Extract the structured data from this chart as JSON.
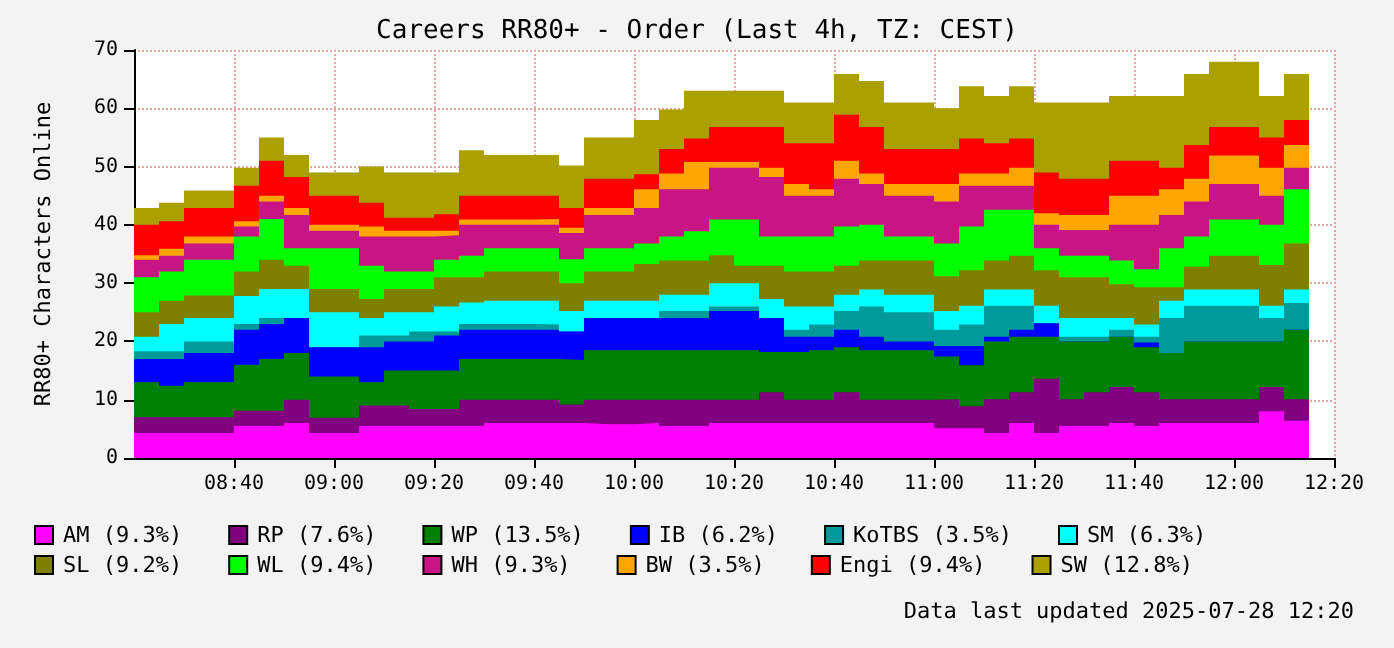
{
  "chart_data": {
    "type": "area",
    "stacked": true,
    "title": "Careers RR80+ - Order (Last 4h, TZ: CEST)",
    "ylabel": "RR80+ Characters Online",
    "annotations": [
      "Data last updated 2025-07-28 12:20"
    ],
    "x": [
      "2025-07-28T08:20",
      "2025-07-28T08:25",
      "2025-07-28T08:30",
      "2025-07-28T08:35",
      "2025-07-28T08:40",
      "2025-07-28T08:45",
      "2025-07-28T08:50",
      "2025-07-28T08:55",
      "2025-07-28T09:00",
      "2025-07-28T09:05",
      "2025-07-28T09:10",
      "2025-07-28T09:15",
      "2025-07-28T09:20",
      "2025-07-28T09:25",
      "2025-07-28T09:30",
      "2025-07-28T09:35",
      "2025-07-28T09:40",
      "2025-07-28T09:45",
      "2025-07-28T09:50",
      "2025-07-28T09:55",
      "2025-07-28T10:00",
      "2025-07-28T10:05",
      "2025-07-28T10:10",
      "2025-07-28T10:15",
      "2025-07-28T10:20",
      "2025-07-28T10:25",
      "2025-07-28T10:30",
      "2025-07-28T10:35",
      "2025-07-28T10:40",
      "2025-07-28T10:45",
      "2025-07-28T10:50",
      "2025-07-28T10:55",
      "2025-07-28T11:00",
      "2025-07-28T11:05",
      "2025-07-28T11:10",
      "2025-07-28T11:15",
      "2025-07-28T11:20",
      "2025-07-28T11:25",
      "2025-07-28T11:30",
      "2025-07-28T11:35",
      "2025-07-28T11:40",
      "2025-07-28T11:45",
      "2025-07-28T11:50",
      "2025-07-28T11:55",
      "2025-07-28T12:00",
      "2025-07-28T12:05",
      "2025-07-28T12:10",
      "2025-07-28T12:15"
    ],
    "series": [
      {
        "name": "AM (9.3%)",
        "color": "#ff00ff",
        "values": [
          4.3,
          4.3,
          4.3,
          4.3,
          5.5,
          5.5,
          6,
          4.3,
          4.3,
          5.5,
          5.5,
          5.5,
          5.5,
          5.5,
          6,
          6,
          6,
          6,
          5.8,
          5.8,
          6,
          5.5,
          5.5,
          6,
          6,
          6,
          6,
          6,
          6,
          6,
          6,
          6,
          5.1,
          5.1,
          4.3,
          6,
          4.3,
          5.5,
          5.5,
          6,
          5.5,
          6,
          6,
          6,
          6,
          8,
          6.4,
          6.4
        ]
      },
      {
        "name": "RP (7.6%)",
        "color": "#800080",
        "values": [
          2.7,
          2.7,
          2.7,
          2.7,
          2.6,
          2.6,
          4,
          2.6,
          2.6,
          3.5,
          3.5,
          2.9,
          2.9,
          4.5,
          4,
          4,
          4,
          3.2,
          4.2,
          4.2,
          4,
          4.5,
          4.5,
          4,
          4,
          5.3,
          4,
          4,
          5.3,
          4,
          4,
          4,
          5,
          3.8,
          5.8,
          5.3,
          9.3,
          4.6,
          5.8,
          6.2,
          5.8,
          4.1,
          4.1,
          4.1,
          4.1,
          4.2,
          3.7,
          3.7
        ]
      },
      {
        "name": "WP (13.5%)",
        "color": "#008000",
        "values": [
          6,
          5.4,
          6,
          6,
          7.9,
          8.9,
          8,
          7.1,
          7.1,
          4,
          6,
          6.6,
          6.6,
          7,
          7,
          7,
          7,
          7.6,
          8.5,
          8.5,
          8.5,
          8.5,
          8.5,
          8.5,
          8.5,
          6.9,
          8.2,
          8.5,
          7.7,
          8.5,
          8.5,
          8.5,
          7.3,
          7,
          9.9,
          9.5,
          7.2,
          9.9,
          8.7,
          8.6,
          7.7,
          7.9,
          9.9,
          9.9,
          9.9,
          7.8,
          11.9,
          8.1
        ]
      },
      {
        "name": "IB (6.2%)",
        "color": "#0000ff",
        "values": [
          4,
          4.6,
          5,
          5,
          6,
          6,
          6,
          5,
          5,
          6,
          5,
          5,
          6,
          5,
          5,
          5,
          5,
          4.9,
          5.5,
          5.5,
          5.5,
          5.5,
          5.5,
          6.7,
          6.7,
          5.8,
          2.6,
          2.3,
          3,
          2.3,
          1.5,
          1.5,
          1.8,
          3.3,
          0.8,
          1.2,
          2.3,
          0,
          0,
          0,
          0.8,
          0,
          0,
          0,
          0,
          0,
          0,
          0
        ]
      },
      {
        "name": "KoTBS (3.5%)",
        "color": "#009a9a",
        "values": [
          1.3,
          1.3,
          2,
          2,
          1,
          1,
          0,
          0,
          0,
          2,
          1,
          1.7,
          0.7,
          1,
          1,
          1,
          0.9,
          0,
          0,
          0,
          0,
          1.2,
          1.2,
          0.8,
          0.8,
          0,
          1.2,
          2.1,
          3.2,
          5.2,
          5,
          5,
          2.8,
          3.7,
          5.3,
          4.1,
          0,
          0.8,
          0.8,
          1.2,
          1,
          6,
          6.1,
          6.1,
          6.1,
          4,
          4.6,
          5.8
        ]
      },
      {
        "name": "SM (6.3%)",
        "color": "#00ffff",
        "values": [
          2.5,
          4.7,
          4,
          4,
          4.8,
          5,
          5,
          6,
          6,
          3,
          4,
          3.3,
          4.3,
          3.7,
          4,
          4,
          4.1,
          3.5,
          3,
          3,
          3,
          2.8,
          2.8,
          4,
          4,
          3.3,
          4,
          3.1,
          2.8,
          2.9,
          3,
          3,
          3.2,
          3.2,
          2.8,
          2.8,
          3,
          3.2,
          3.2,
          2,
          2.1,
          3,
          2.8,
          2.8,
          2.8,
          2.1,
          2.3,
          3.2
        ]
      },
      {
        "name": "SL (9.2%)",
        "color": "#808000",
        "values": [
          4.2,
          4,
          3.9,
          3.9,
          4.2,
          5,
          4,
          4,
          4,
          3.3,
          4,
          4,
          5,
          4.3,
          5,
          5,
          5,
          4.8,
          5,
          5,
          6.3,
          5.9,
          5.9,
          4.8,
          3,
          5.7,
          6,
          6,
          5,
          5,
          5.9,
          5.9,
          6,
          6.1,
          5,
          5.8,
          6.1,
          7,
          7,
          5.8,
          6.4,
          2.3,
          3.9,
          5.8,
          5.8,
          7,
          7.9,
          7.5
        ]
      },
      {
        "name": "WL (9.4%)",
        "color": "#00ff00",
        "values": [
          6,
          5,
          6.1,
          6.1,
          6,
          7,
          3,
          7,
          7,
          5.7,
          3,
          3,
          3,
          3.7,
          4,
          4,
          4,
          4.1,
          4,
          4,
          3.5,
          4.1,
          5,
          6.1,
          7.9,
          5,
          6,
          6,
          6.7,
          6.1,
          4.1,
          4.1,
          5.6,
          7.5,
          8.7,
          7.9,
          3.8,
          3.7,
          3.7,
          4.1,
          3.1,
          6.7,
          5.2,
          6.2,
          6.2,
          6.9,
          9.3,
          7.9
        ]
      },
      {
        "name": "WH (9.3%)",
        "color": "#c71585",
        "values": [
          3,
          2.7,
          2.8,
          2.8,
          1.7,
          3,
          5.7,
          3,
          3,
          5,
          6,
          6,
          4.2,
          5.3,
          4,
          4,
          4,
          4.5,
          5.7,
          5.7,
          6.1,
          8.1,
          7.2,
          8.9,
          8.9,
          10.2,
          7,
          7,
          8.2,
          7,
          7,
          7,
          7.2,
          7,
          4.1,
          4.1,
          4,
          4.4,
          4.4,
          6.1,
          7.6,
          5.7,
          6,
          6.1,
          6.1,
          5,
          3.7,
          4.4
        ]
      },
      {
        "name": "BW (3.5%)",
        "color": "#ffa500",
        "values": [
          0.8,
          1.2,
          1.2,
          1.2,
          0.9,
          1,
          1.2,
          1,
          1,
          1.7,
          1,
          1,
          0.8,
          0.9,
          0.9,
          0.9,
          1,
          0.9,
          1.2,
          1.2,
          3.2,
          2.7,
          4.7,
          1,
          1,
          1.6,
          2,
          1.1,
          3.1,
          1.8,
          2,
          2,
          3,
          2.1,
          2.1,
          3.1,
          2,
          2.6,
          2.6,
          5,
          5,
          4.4,
          3.9,
          4.9,
          4.9,
          4.8,
          3.9,
          2.8
        ]
      },
      {
        "name": "Engi (9.4%)",
        "color": "#ff0000",
        "values": [
          5.2,
          4.7,
          4.9,
          4.9,
          6.1,
          6,
          5.3,
          5,
          5,
          4.1,
          2.2,
          2.2,
          2.8,
          4.1,
          4.1,
          4.1,
          4,
          3.4,
          5,
          5,
          2.6,
          4.2,
          4,
          6,
          6,
          7,
          7,
          7.9,
          7.9,
          8,
          6,
          6,
          6,
          6,
          5.2,
          5,
          7,
          6.2,
          6.2,
          6,
          6,
          3.7,
          5.8,
          4.9,
          4.9,
          5.2,
          4.3,
          5.2
        ]
      },
      {
        "name": "SW (12.8%)",
        "color": "#aaa000",
        "values": [
          2.9,
          3.2,
          3,
          3,
          3.1,
          4,
          3.8,
          4,
          4,
          6.2,
          7.8,
          7.8,
          7.2,
          7.8,
          7,
          7,
          7,
          7.3,
          7.1,
          7.1,
          9.3,
          6.8,
          8.2,
          6.2,
          6.2,
          6.2,
          7,
          7,
          7,
          7.9,
          8,
          8,
          7,
          9,
          8.1,
          9,
          12,
          13.1,
          13.1,
          11.1,
          11.1,
          12.3,
          12.2,
          11.2,
          11.2,
          7.1,
          7.9,
          8
        ]
      }
    ],
    "xlim": [
      "2025-07-28T08:20",
      "2025-07-28T12:20"
    ],
    "xticks": [
      {
        "value": "2025-07-28T08:40",
        "label": "08:40"
      },
      {
        "value": "2025-07-28T09:00",
        "label": "09:00"
      },
      {
        "value": "2025-07-28T09:20",
        "label": "09:20"
      },
      {
        "value": "2025-07-28T09:40",
        "label": "09:40"
      },
      {
        "value": "2025-07-28T10:00",
        "label": "10:00"
      },
      {
        "value": "2025-07-28T10:20",
        "label": "10:20"
      },
      {
        "value": "2025-07-28T10:40",
        "label": "10:40"
      },
      {
        "value": "2025-07-28T11:00",
        "label": "11:00"
      },
      {
        "value": "2025-07-28T11:20",
        "label": "11:20"
      },
      {
        "value": "2025-07-28T11:40",
        "label": "11:40"
      },
      {
        "value": "2025-07-28T12:00",
        "label": "12:00"
      },
      {
        "value": "2025-07-28T12:20",
        "label": "12:20"
      }
    ],
    "ylim": [
      0,
      70
    ],
    "yticks": [
      0,
      10,
      20,
      30,
      40,
      50,
      60,
      70
    ],
    "grid": true,
    "legend": "bottom"
  }
}
